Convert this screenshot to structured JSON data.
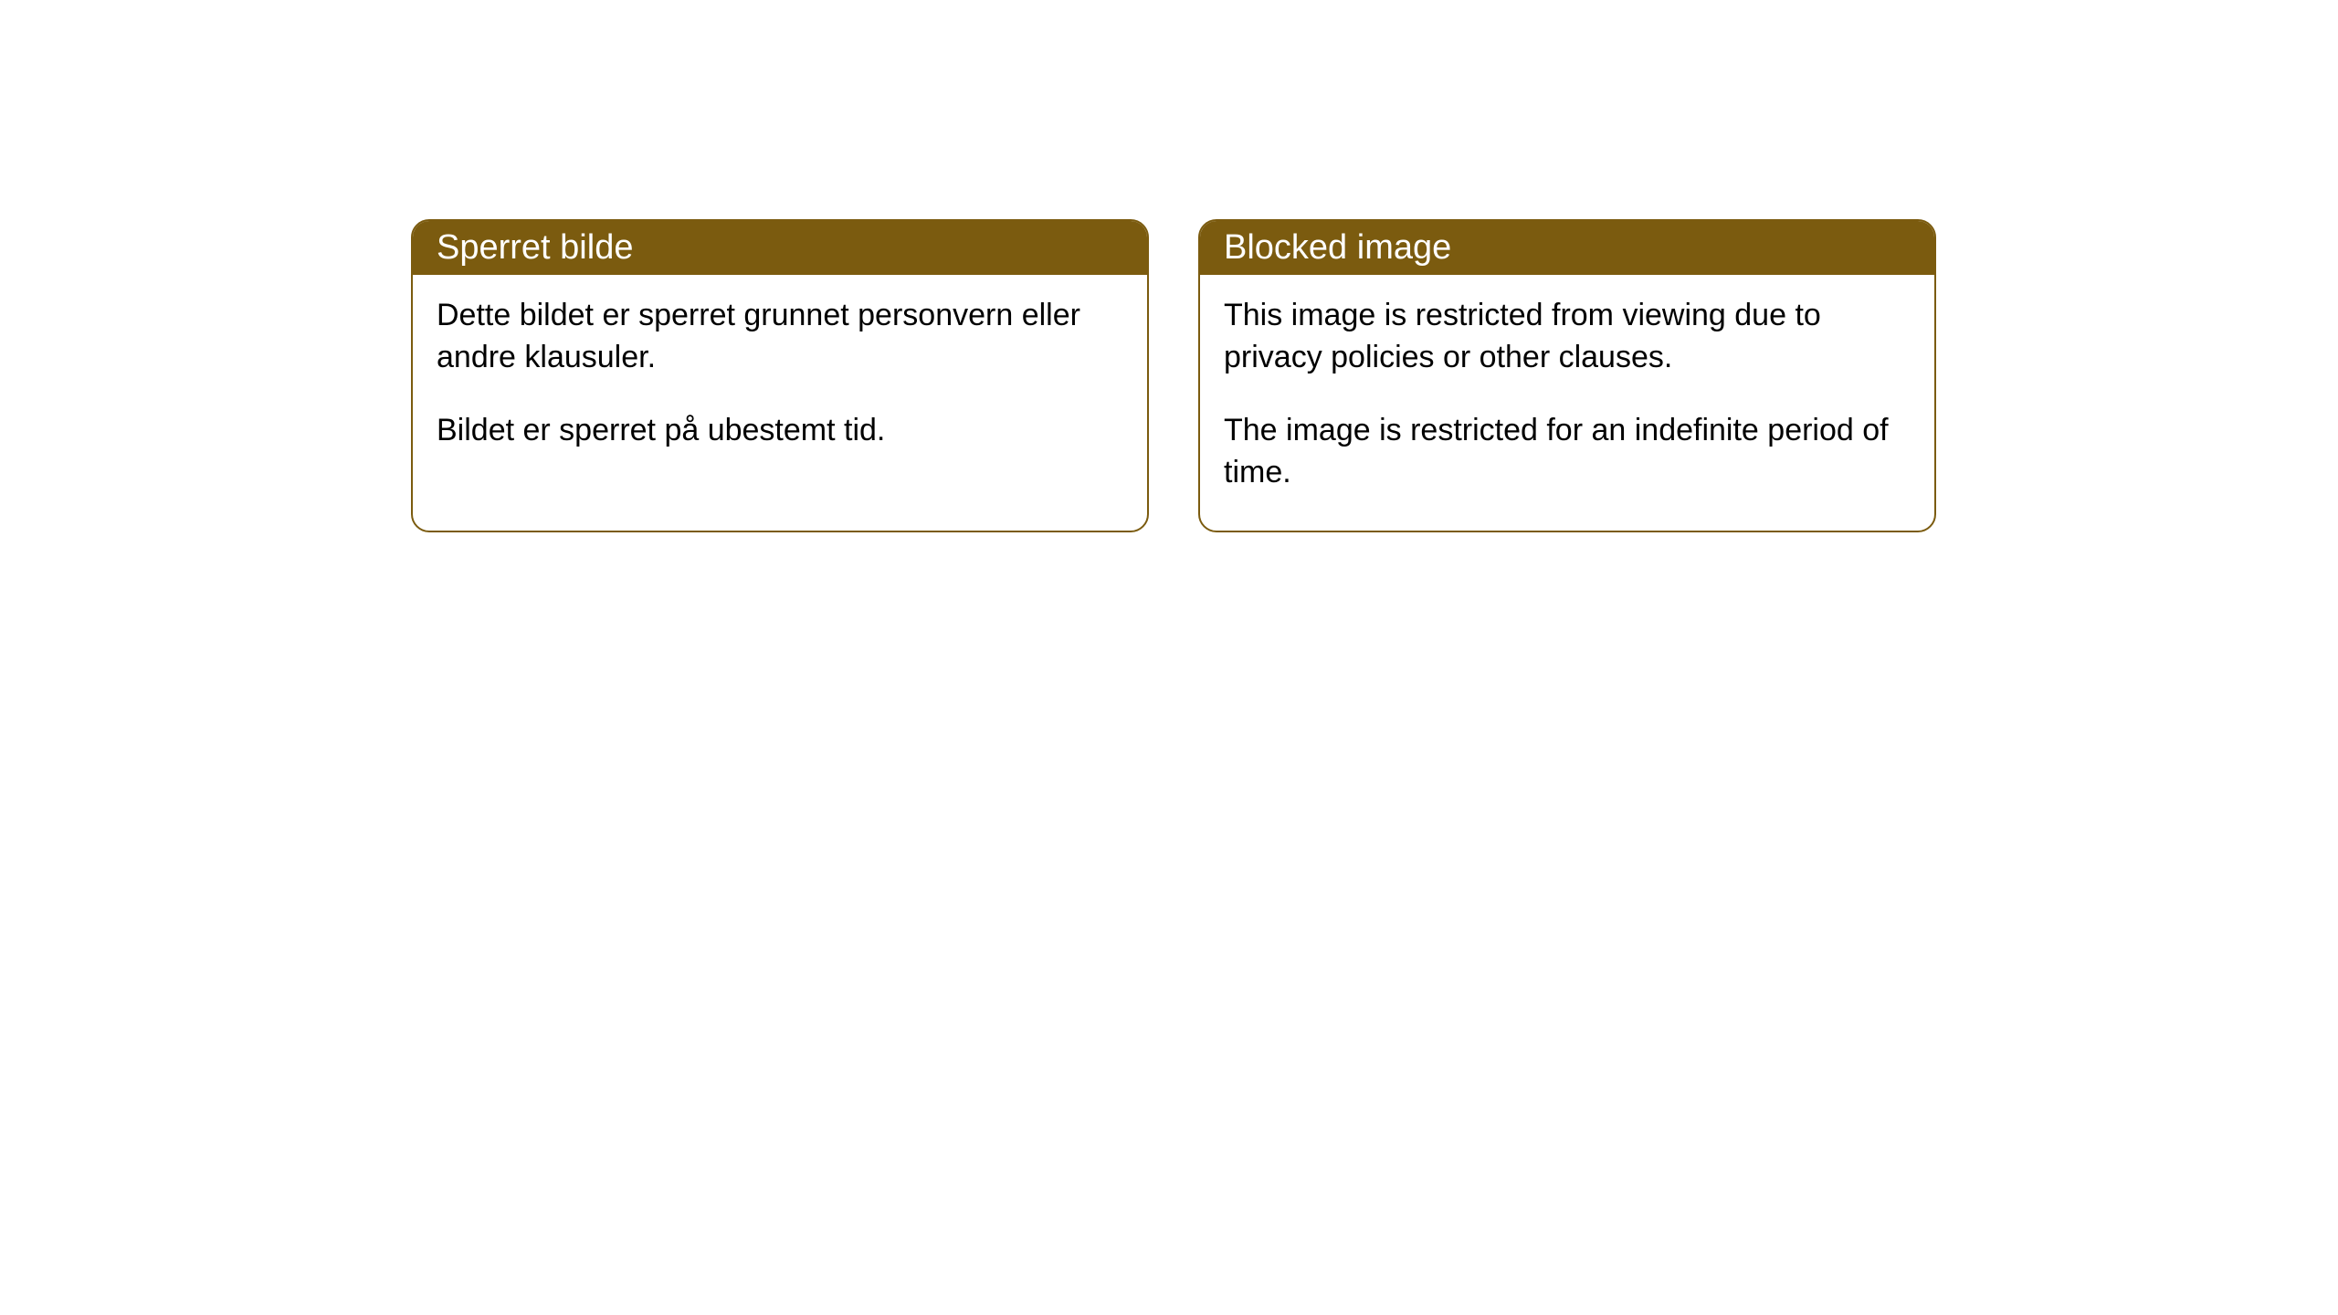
{
  "cards": [
    {
      "title": "Sperret bilde",
      "para1": "Dette bildet er sperret grunnet personvern eller andre klausuler.",
      "para2": "Bildet er sperret på ubestemt tid."
    },
    {
      "title": "Blocked image",
      "para1": "This image is restricted from viewing due to privacy policies or other clauses.",
      "para2": "The image is restricted for an indefinite period of time."
    }
  ],
  "styling": {
    "header_background": "#7b5b0f",
    "header_text_color": "#ffffff",
    "body_text_color": "#000000",
    "card_border_color": "#7b5b0f",
    "card_border_radius": 20,
    "card_background": "#ffffff",
    "header_fontsize": 38,
    "body_fontsize": 34
  }
}
